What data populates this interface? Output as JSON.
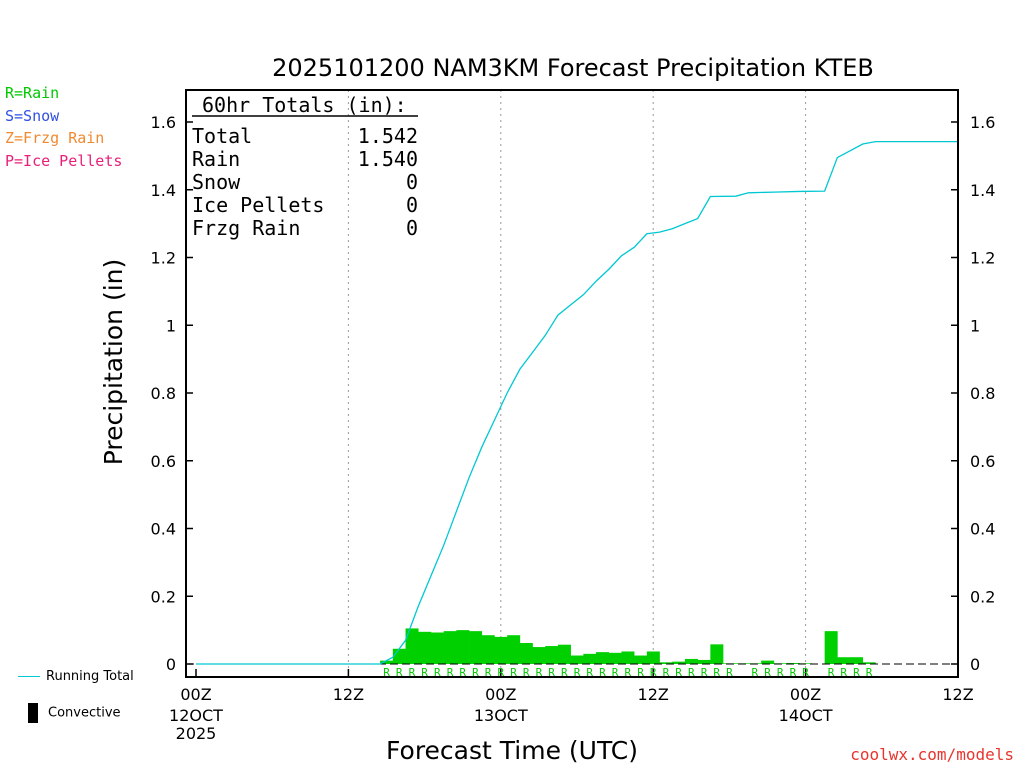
{
  "chart_data": {
    "type": "bar",
    "title": "2025101200 NAM3KM Forecast Precipitation KTEB",
    "xlabel": "Forecast Time (UTC)",
    "ylabel": "Precipitation (in)",
    "ylim": [
      0,
      1.7
    ],
    "xlim": [
      0,
      60
    ],
    "y_ticks": [
      0,
      0.2,
      0.4,
      0.6,
      0.8,
      1,
      1.2,
      1.4,
      1.6
    ],
    "y_tick_labels": [
      "0",
      "0.2",
      "0.4",
      "0.6",
      "0.8",
      "1",
      "1.2",
      "1.4",
      "1.6"
    ],
    "x_ticks": [
      {
        "hour": 0,
        "l1": "00Z",
        "l2": "12OCT",
        "l3": "2025"
      },
      {
        "hour": 12,
        "l1": "12Z",
        "l2": "",
        "l3": ""
      },
      {
        "hour": 24,
        "l1": "00Z",
        "l2": "13OCT",
        "l3": ""
      },
      {
        "hour": 36,
        "l1": "12Z",
        "l2": "",
        "l3": ""
      },
      {
        "hour": 48,
        "l1": "00Z",
        "l2": "14OCT",
        "l3": ""
      },
      {
        "hour": 60,
        "l1": "12Z",
        "l2": "",
        "l3": ""
      }
    ],
    "gridlines_x_hours": [
      12,
      24,
      36,
      48
    ],
    "hourly_rain": [
      {
        "hour": 15,
        "value": 0.01
      },
      {
        "hour": 16,
        "value": 0.045
      },
      {
        "hour": 17,
        "value": 0.105
      },
      {
        "hour": 18,
        "value": 0.095
      },
      {
        "hour": 19,
        "value": 0.093
      },
      {
        "hour": 20,
        "value": 0.097
      },
      {
        "hour": 21,
        "value": 0.1
      },
      {
        "hour": 22,
        "value": 0.097
      },
      {
        "hour": 23,
        "value": 0.085
      },
      {
        "hour": 24,
        "value": 0.08
      },
      {
        "hour": 25,
        "value": 0.085
      },
      {
        "hour": 26,
        "value": 0.062
      },
      {
        "hour": 27,
        "value": 0.05
      },
      {
        "hour": 28,
        "value": 0.053
      },
      {
        "hour": 29,
        "value": 0.057
      },
      {
        "hour": 30,
        "value": 0.025
      },
      {
        "hour": 31,
        "value": 0.03
      },
      {
        "hour": 32,
        "value": 0.035
      },
      {
        "hour": 33,
        "value": 0.033
      },
      {
        "hour": 34,
        "value": 0.037
      },
      {
        "hour": 35,
        "value": 0.025
      },
      {
        "hour": 36,
        "value": 0.037
      },
      {
        "hour": 37,
        "value": 0.005
      },
      {
        "hour": 38,
        "value": 0.007
      },
      {
        "hour": 39,
        "value": 0.015
      },
      {
        "hour": 40,
        "value": 0.012
      },
      {
        "hour": 41,
        "value": 0.058
      },
      {
        "hour": 42,
        "value": 0.002
      },
      {
        "hour": 43,
        "value": 0.002
      },
      {
        "hour": 44,
        "value": 0.002
      },
      {
        "hour": 45,
        "value": 0.01
      },
      {
        "hour": 46,
        "value": 0.002
      },
      {
        "hour": 47,
        "value": 0.003
      },
      {
        "hour": 48,
        "value": 0.002
      },
      {
        "hour": 50,
        "value": 0.097
      },
      {
        "hour": 51,
        "value": 0.02
      },
      {
        "hour": 52,
        "value": 0.02
      },
      {
        "hour": 53,
        "value": 0.005
      }
    ],
    "running_total": [
      {
        "hour": 0,
        "value": 0
      },
      {
        "hour": 14.5,
        "value": 0
      },
      {
        "hour": 15.5,
        "value": 0.02
      },
      {
        "hour": 16.5,
        "value": 0.07
      },
      {
        "hour": 17.5,
        "value": 0.17
      },
      {
        "hour": 18.5,
        "value": 0.26
      },
      {
        "hour": 19.5,
        "value": 0.35
      },
      {
        "hour": 20.5,
        "value": 0.45
      },
      {
        "hour": 21.5,
        "value": 0.55
      },
      {
        "hour": 22.5,
        "value": 0.64
      },
      {
        "hour": 23.5,
        "value": 0.72
      },
      {
        "hour": 24.5,
        "value": 0.8
      },
      {
        "hour": 25.5,
        "value": 0.87
      },
      {
        "hour": 26.5,
        "value": 0.92
      },
      {
        "hour": 27.5,
        "value": 0.97
      },
      {
        "hour": 28.5,
        "value": 1.03
      },
      {
        "hour": 29.5,
        "value": 1.06
      },
      {
        "hour": 30.5,
        "value": 1.09
      },
      {
        "hour": 31.5,
        "value": 1.13
      },
      {
        "hour": 32.5,
        "value": 1.165
      },
      {
        "hour": 33.5,
        "value": 1.205
      },
      {
        "hour": 34.5,
        "value": 1.23
      },
      {
        "hour": 35.5,
        "value": 1.27
      },
      {
        "hour": 36.5,
        "value": 1.275
      },
      {
        "hour": 37.5,
        "value": 1.285
      },
      {
        "hour": 38.5,
        "value": 1.3
      },
      {
        "hour": 39.5,
        "value": 1.315
      },
      {
        "hour": 40.5,
        "value": 1.38
      },
      {
        "hour": 42.5,
        "value": 1.381
      },
      {
        "hour": 43.5,
        "value": 1.391
      },
      {
        "hour": 45.5,
        "value": 1.393
      },
      {
        "hour": 47.5,
        "value": 1.395
      },
      {
        "hour": 49.5,
        "value": 1.396
      },
      {
        "hour": 50.5,
        "value": 1.495
      },
      {
        "hour": 51.5,
        "value": 1.515
      },
      {
        "hour": 52.5,
        "value": 1.535
      },
      {
        "hour": 53.5,
        "value": 1.542
      },
      {
        "hour": 60,
        "value": 1.542
      }
    ],
    "ptype_markers": [
      {
        "hour": 15,
        "label": "R"
      },
      {
        "hour": 16,
        "label": "R"
      },
      {
        "hour": 17,
        "label": "R"
      },
      {
        "hour": 18,
        "label": "R"
      },
      {
        "hour": 19,
        "label": "R"
      },
      {
        "hour": 20,
        "label": "R"
      },
      {
        "hour": 21,
        "label": "R"
      },
      {
        "hour": 22,
        "label": "R"
      },
      {
        "hour": 23,
        "label": "R"
      },
      {
        "hour": 24,
        "label": "R"
      },
      {
        "hour": 25,
        "label": "R"
      },
      {
        "hour": 26,
        "label": "R"
      },
      {
        "hour": 27,
        "label": "R"
      },
      {
        "hour": 28,
        "label": "R"
      },
      {
        "hour": 29,
        "label": "R"
      },
      {
        "hour": 30,
        "label": "R"
      },
      {
        "hour": 31,
        "label": "R"
      },
      {
        "hour": 32,
        "label": "R"
      },
      {
        "hour": 33,
        "label": "R"
      },
      {
        "hour": 34,
        "label": "R"
      },
      {
        "hour": 35,
        "label": "R"
      },
      {
        "hour": 36,
        "label": "R"
      },
      {
        "hour": 37,
        "label": "R"
      },
      {
        "hour": 38,
        "label": "R"
      },
      {
        "hour": 39,
        "label": "R"
      },
      {
        "hour": 40,
        "label": "R"
      },
      {
        "hour": 41,
        "label": "R"
      },
      {
        "hour": 42,
        "label": "R"
      },
      {
        "hour": 44,
        "label": "R"
      },
      {
        "hour": 45,
        "label": "R"
      },
      {
        "hour": 46,
        "label": "R"
      },
      {
        "hour": 47,
        "label": "R"
      },
      {
        "hour": 48,
        "label": "R"
      },
      {
        "hour": 50,
        "label": "R"
      },
      {
        "hour": 51,
        "label": "R"
      },
      {
        "hour": 52,
        "label": "R"
      },
      {
        "hour": 53,
        "label": "R"
      }
    ],
    "totals_box": {
      "heading": "60hr Totals (in):",
      "rows": [
        {
          "label": "Total",
          "value": "1.542"
        },
        {
          "label": "Rain",
          "value": "1.540"
        },
        {
          "label": "Snow",
          "value": "0"
        },
        {
          "label": "Ice Pellets",
          "value": "0"
        },
        {
          "label": "Frzg Rain",
          "value": "0"
        }
      ]
    },
    "colors": {
      "bar": "#00d000",
      "line": "#00c8d2",
      "grid": "#9a9a9a",
      "rain": "#00c800",
      "snow": "#3050e0",
      "frzg": "#f08a30",
      "ice": "#e8207a",
      "credit": "#e8352d"
    }
  },
  "ptype_legend": [
    {
      "text": "R=Rain",
      "color": "#00c800"
    },
    {
      "text": "S=Snow",
      "color": "#3050e0"
    },
    {
      "text": "Z=Frzg Rain",
      "color": "#f08a30"
    },
    {
      "text": "P=Ice Pellets",
      "color": "#e8207a"
    }
  ],
  "series_legend": {
    "running_total": "Running Total",
    "convective": "Convective"
  },
  "credit": "coolwx.com/models"
}
